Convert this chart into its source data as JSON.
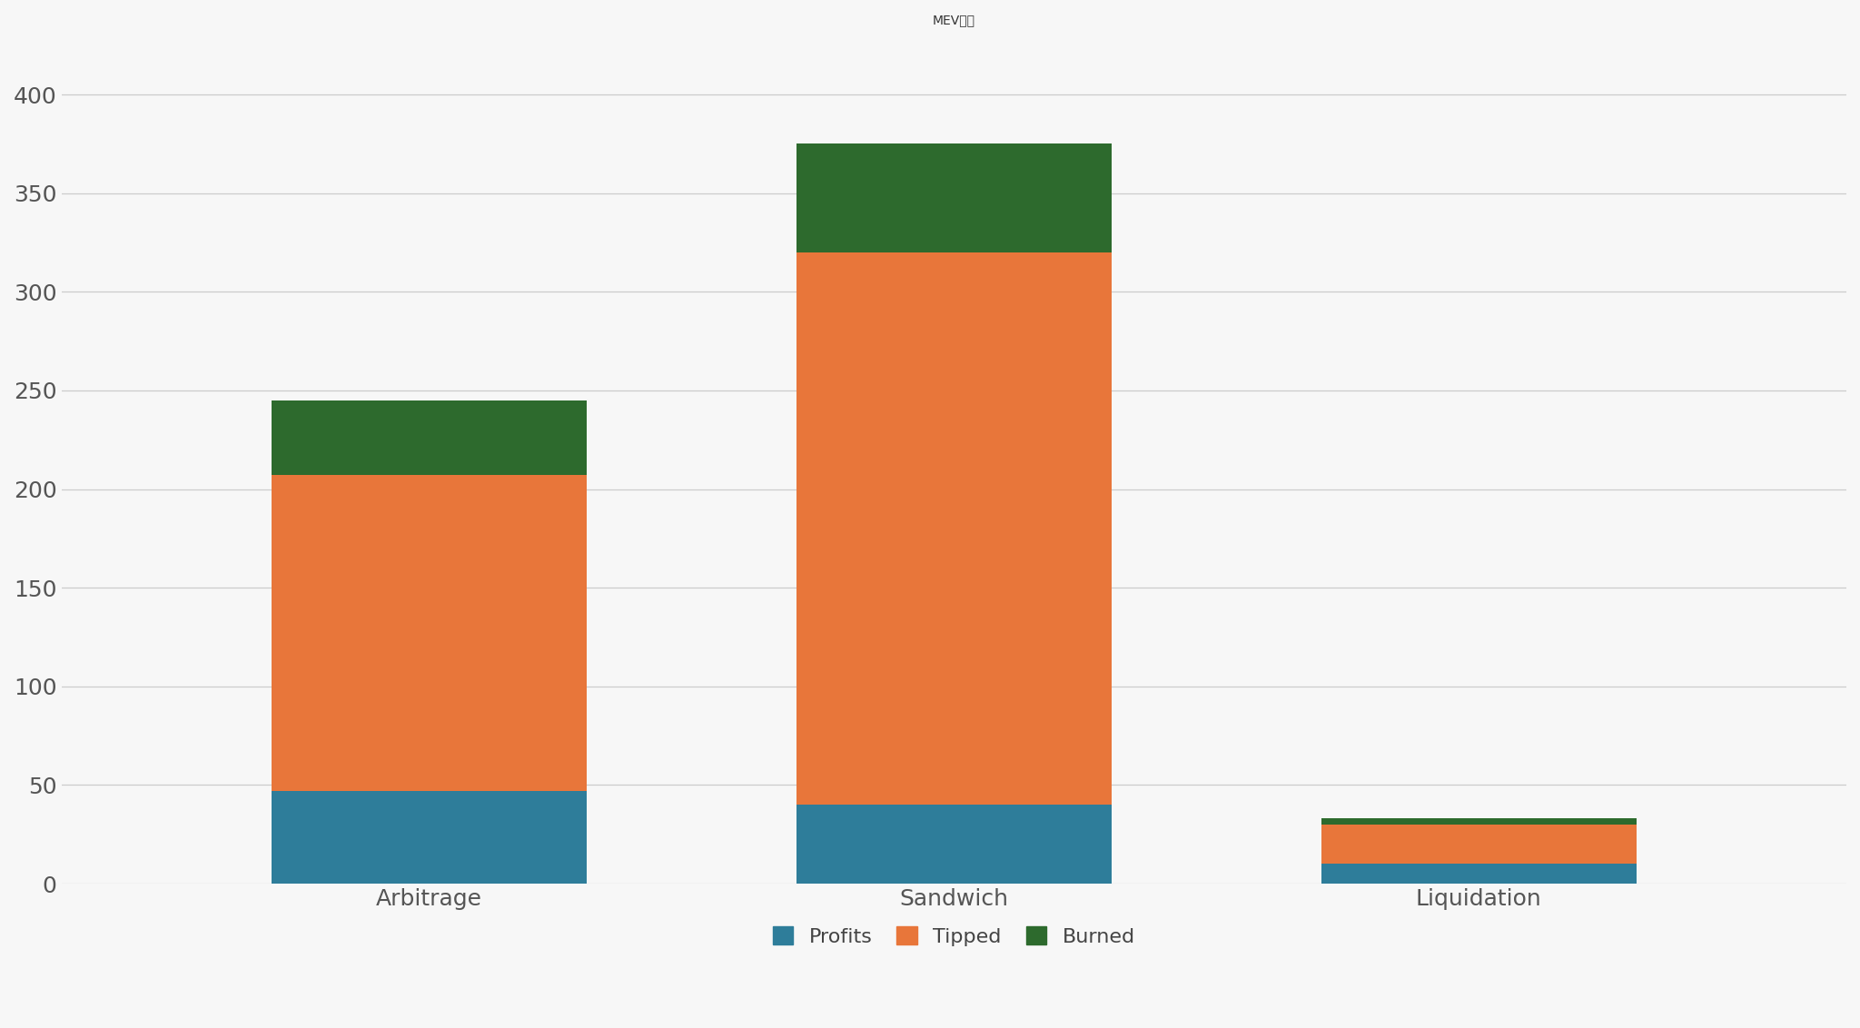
{
  "categories": [
    "Arbitrage",
    "Sandwich",
    "Liquidation"
  ],
  "profits": [
    47,
    40,
    10
  ],
  "tipped": [
    160,
    280,
    20
  ],
  "burned": [
    38,
    55,
    3
  ],
  "color_profits": "#2E7D9A",
  "color_tipped": "#E8763A",
  "color_burned": "#2D6A2D",
  "title": "MEV类别",
  "title_fontsize": 32,
  "legend_labels": [
    "Profits",
    "Tipped",
    "Burned"
  ],
  "ylim": [
    0,
    420
  ],
  "yticks": [
    0,
    50,
    100,
    150,
    200,
    250,
    300,
    350,
    400
  ],
  "background_color": "#F7F7F7",
  "plot_bg_color": "#F7F7F7",
  "bar_width": 0.6,
  "tick_fontsize": 18,
  "legend_fontsize": 16,
  "xlabel_fontsize": 18
}
